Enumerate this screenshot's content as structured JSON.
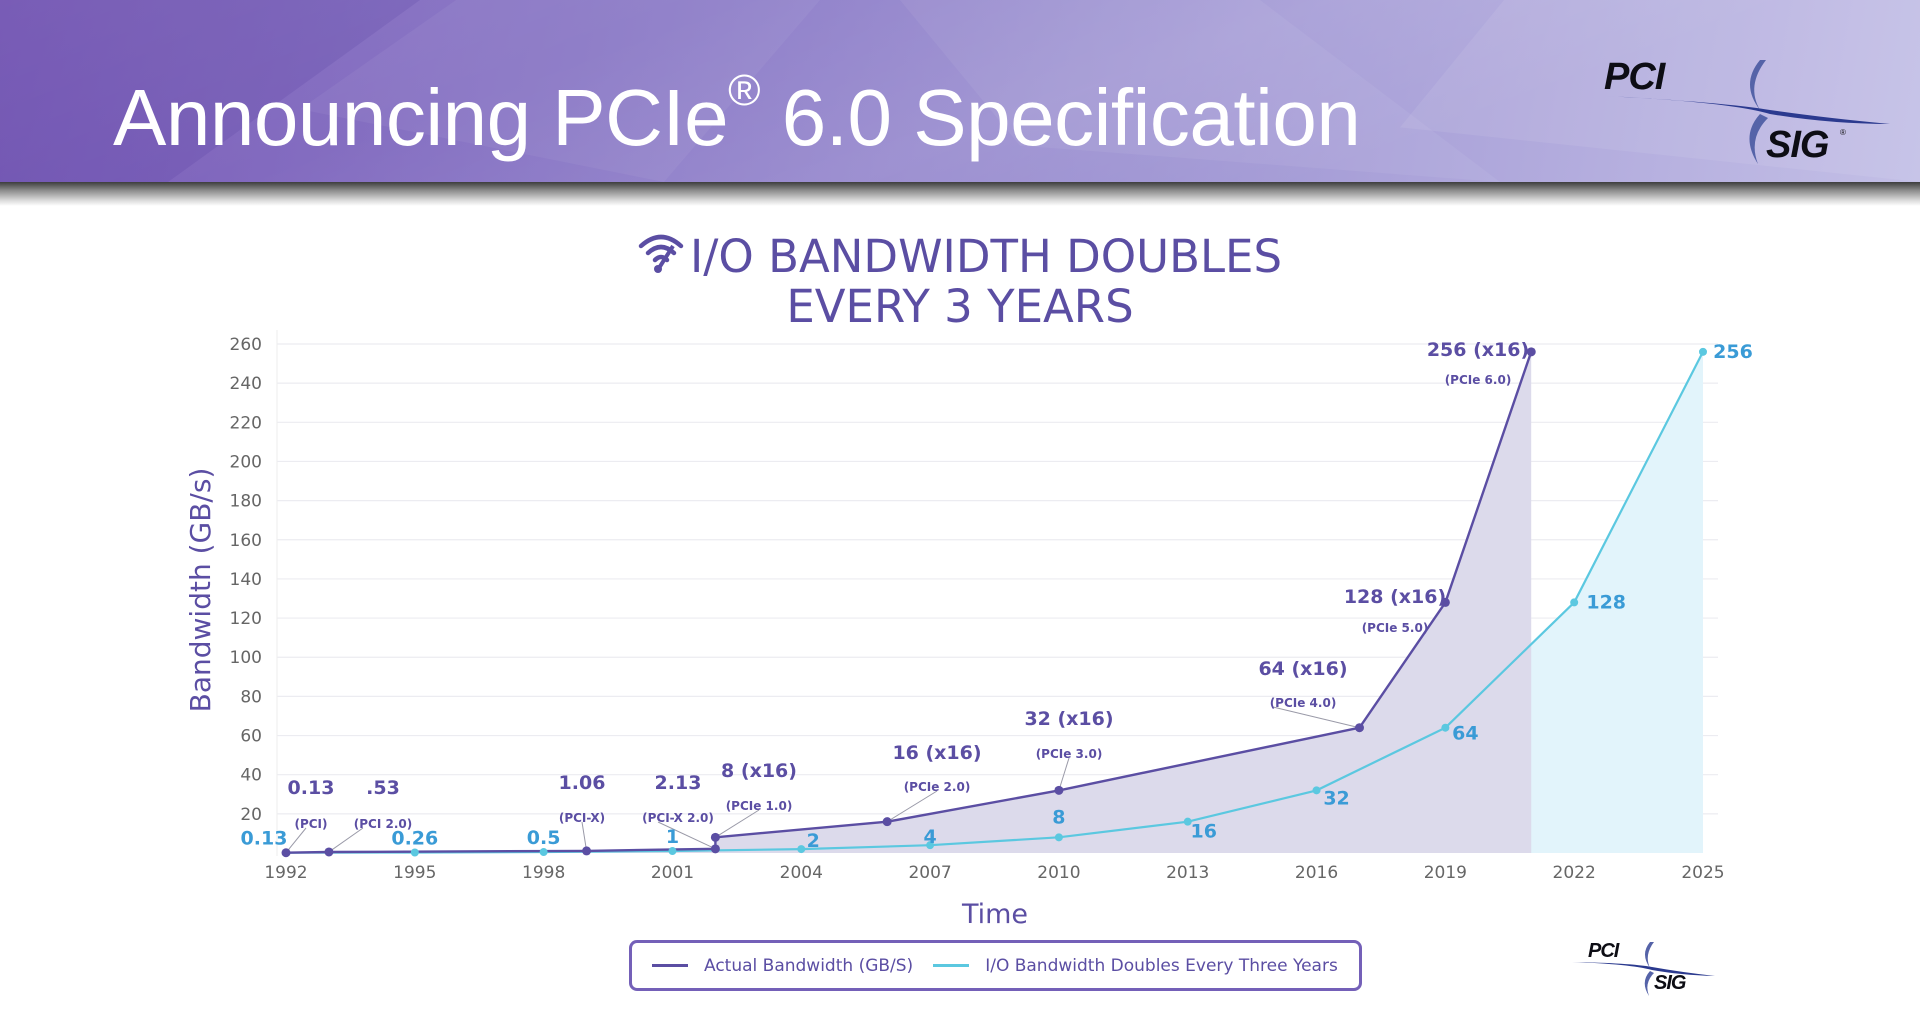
{
  "slide": {
    "title_main": "Announcing PCIe",
    "title_reg": "®",
    "title_rest": " 6.0 Specification",
    "logo_top": "PCI",
    "logo_bottom": "SIG",
    "logo_reg": "®",
    "header_gradient": [
      "#7a5cb8",
      "#c3bfe6"
    ]
  },
  "colors": {
    "actual": "#5b4ea3",
    "projected": "#5bc8e0",
    "projected_label": "#3a9bd6",
    "actual_fill": "#dcdaeb",
    "projected_fill": "#e2f4fb",
    "axis_text": "#666666",
    "grid": "#ececf1"
  },
  "chart_data": {
    "type": "line",
    "title": "I/O BANDWIDTH DOUBLES EVERY 3 YEARS",
    "title_line1": "I/O BANDWIDTH DOUBLES",
    "title_line2": "EVERY 3 YEARS",
    "title_icon": "wifi-icon",
    "xlabel": "Time",
    "ylabel": "Bandwidth (GB/s)",
    "xlim": [
      1992,
      2025
    ],
    "ylim": [
      0,
      260
    ],
    "grid": true,
    "legend_position": "bottom",
    "x_ticks": [
      "1992",
      "1995",
      "1998",
      "2001",
      "2004",
      "2007",
      "2010",
      "2013",
      "2016",
      "2019",
      "2022",
      "2025"
    ],
    "y_ticks": [
      "20",
      "40",
      "60",
      "80",
      "100",
      "120",
      "140",
      "160",
      "180",
      "200",
      "220",
      "240",
      "260"
    ],
    "series": [
      {
        "name": "Actual Bandwidth (GB/S)",
        "points": [
          {
            "x": 1992,
            "y": 0.13,
            "label": "0.13",
            "sublabel": "(PCI)"
          },
          {
            "x": 1993,
            "y": 0.53,
            "label": ".53",
            "sublabel": "(PCI 2.0)"
          },
          {
            "x": 1999,
            "y": 1.06,
            "label": "1.06",
            "sublabel": "(PCI-X)"
          },
          {
            "x": 2002,
            "y": 2.13,
            "label": "2.13",
            "sublabel": "(PCI-X 2.0)"
          },
          {
            "x": 2002,
            "y": 8,
            "label": "8 (x16)",
            "sublabel": "(PCIe 1.0)"
          },
          {
            "x": 2006,
            "y": 16,
            "label": "16 (x16)",
            "sublabel": "(PCIe 2.0)"
          },
          {
            "x": 2010,
            "y": 32,
            "label": "32 (x16)",
            "sublabel": "(PCIe 3.0)"
          },
          {
            "x": 2017,
            "y": 64,
            "label": "64 (x16)",
            "sublabel": "(PCIe 4.0)"
          },
          {
            "x": 2019,
            "y": 128,
            "label": "128 (x16)",
            "sublabel": "(PCIe 5.0)"
          },
          {
            "x": 2021,
            "y": 256,
            "label": "256 (x16)",
            "sublabel": "(PCIe 6.0)"
          }
        ]
      },
      {
        "name": "I/O Bandwidth Doubles Every Three Years",
        "points": [
          {
            "x": 1992,
            "y": 0.13,
            "label": "0.13"
          },
          {
            "x": 1995,
            "y": 0.26,
            "label": "0.26"
          },
          {
            "x": 1998,
            "y": 0.5,
            "label": "0.5"
          },
          {
            "x": 2001,
            "y": 1,
            "label": "1"
          },
          {
            "x": 2004,
            "y": 2,
            "label": "2"
          },
          {
            "x": 2007,
            "y": 4,
            "label": "4"
          },
          {
            "x": 2010,
            "y": 8,
            "label": "8"
          },
          {
            "x": 2013,
            "y": 16,
            "label": "16"
          },
          {
            "x": 2016,
            "y": 32,
            "label": "32"
          },
          {
            "x": 2019,
            "y": 64,
            "label": "64"
          },
          {
            "x": 2022,
            "y": 128,
            "label": "128"
          },
          {
            "x": 2025,
            "y": 256,
            "label": "256"
          }
        ]
      }
    ]
  },
  "legend": {
    "items": [
      {
        "label": "Actual Bandwidth (GB/S)"
      },
      {
        "label": "I/O Bandwidth Doubles Every Three Years"
      }
    ]
  }
}
